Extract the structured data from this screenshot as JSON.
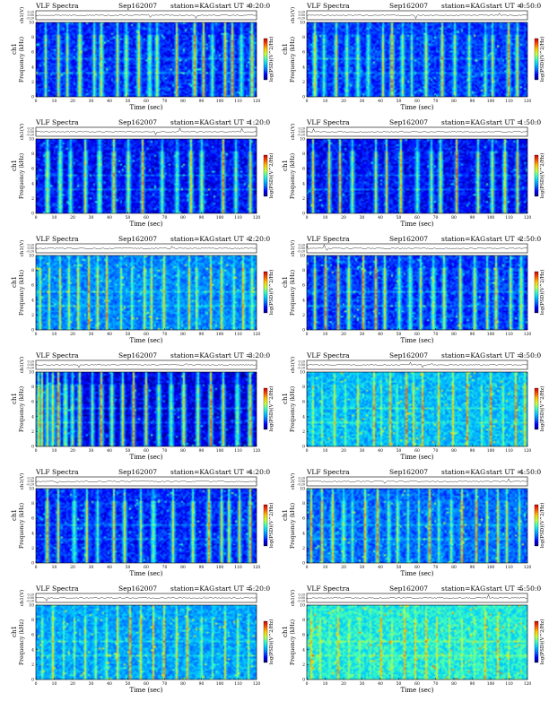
{
  "page": {
    "background": "#ffffff"
  },
  "common": {
    "title_left": "VLF Spectra",
    "date": "Sep162007",
    "station": "station=KAG",
    "start_prefix": "start UT =",
    "ch_label": "ch1(V)",
    "freq_label": "Frequency (kHz)",
    "ch_side": "ch1",
    "xlabel": "Time (sec)",
    "colorbar_label": "log(PSD)(V^2/Hz)",
    "wave_ticks": [
      "0.20",
      "0.00",
      "-0.20"
    ],
    "freq_ticks": [
      "0",
      "2",
      "4",
      "6",
      "8",
      "10"
    ],
    "time_ticks": [
      "0",
      "10",
      "20",
      "30",
      "40",
      "50",
      "60",
      "70",
      "80",
      "90",
      "100",
      "110",
      "120"
    ]
  },
  "colormap": [
    "#00007f",
    "#0000ff",
    "#0070ff",
    "#00c8ff",
    "#3cffc0",
    "#c8ff3c",
    "#ffc800",
    "#ff5000",
    "#c80000"
  ],
  "chart_data": [
    {
      "type": "heatmap",
      "start_ut": "0:20:0",
      "xlim": [
        0,
        120
      ],
      "ylim": [
        0,
        10
      ],
      "background_level": 0.16,
      "bursts_s": [
        5,
        12,
        17,
        24,
        31,
        35,
        44,
        49,
        56,
        62,
        66,
        77,
        87,
        91,
        96,
        103,
        107,
        112,
        118
      ]
    },
    {
      "type": "heatmap",
      "start_ut": "0:50:0",
      "xlim": [
        0,
        120
      ],
      "ylim": [
        0,
        10
      ],
      "background_level": 0.18,
      "bursts_s": [
        4,
        9,
        16,
        22,
        28,
        33,
        41,
        46,
        52,
        57,
        65,
        74,
        81,
        89,
        97,
        101,
        110,
        115
      ]
    },
    {
      "type": "heatmap",
      "start_ut": "1:20:0",
      "xlim": [
        0,
        120
      ],
      "ylim": [
        0,
        10
      ],
      "background_level": 0.13,
      "bursts_s": [
        6,
        13,
        19,
        27,
        34,
        42,
        50,
        58,
        69,
        77,
        85,
        90,
        102,
        109,
        117
      ]
    },
    {
      "type": "heatmap",
      "start_ut": "1:50:0",
      "xlim": [
        0,
        120
      ],
      "ylim": [
        0,
        10
      ],
      "background_level": 0.13,
      "bursts_s": [
        3,
        12,
        18,
        25,
        37,
        43,
        51,
        60,
        68,
        73,
        82,
        93,
        101,
        108,
        115
      ]
    },
    {
      "type": "heatmap",
      "start_ut": "2:20:0",
      "xlim": [
        0,
        120
      ],
      "ylim": [
        0,
        10
      ],
      "background_level": 0.28,
      "bursts_s": [
        2,
        7,
        13,
        18,
        23,
        29,
        33,
        38,
        46,
        52,
        59,
        63,
        70,
        78,
        84,
        88,
        95,
        101,
        108,
        113,
        118
      ]
    },
    {
      "type": "heatmap",
      "start_ut": "2:50:0",
      "xlim": [
        0,
        120
      ],
      "ylim": [
        0,
        10
      ],
      "background_level": 0.18,
      "bursts_s": [
        4,
        10,
        17,
        23,
        30,
        37,
        42,
        50,
        56,
        62,
        69,
        75,
        84,
        91,
        98,
        103,
        111,
        117
      ]
    },
    {
      "type": "heatmap",
      "start_ut": "3:20:0",
      "xlim": [
        0,
        120
      ],
      "ylim": [
        0,
        10
      ],
      "background_level": 0.1,
      "bursts_s": [
        1,
        3,
        6,
        9,
        12,
        16,
        20,
        24,
        30,
        35,
        41,
        47,
        53,
        60,
        67,
        74,
        81,
        89,
        95,
        102,
        110,
        117
      ]
    },
    {
      "type": "heatmap",
      "start_ut": "3:50:0",
      "xlim": [
        0,
        120
      ],
      "ylim": [
        0,
        10
      ],
      "background_level": 0.36,
      "bursts_s": [
        3,
        8,
        15,
        21,
        28,
        36,
        40,
        45,
        49,
        54,
        58,
        63,
        72,
        80,
        88,
        95,
        100,
        107,
        114,
        119
      ]
    },
    {
      "type": "heatmap",
      "start_ut": "4:20:0",
      "xlim": [
        0,
        120
      ],
      "ylim": [
        0,
        10
      ],
      "background_level": 0.16,
      "bursts_s": [
        6,
        12,
        21,
        28,
        33,
        42,
        48,
        57,
        64,
        75,
        86,
        94,
        101,
        105,
        111,
        117
      ]
    },
    {
      "type": "heatmap",
      "start_ut": "4:50:0",
      "xlim": [
        0,
        120
      ],
      "ylim": [
        0,
        10
      ],
      "background_level": 0.24,
      "bursts_s": [
        2,
        8,
        14,
        20,
        25,
        31,
        38,
        44,
        49,
        55,
        61,
        67,
        72,
        79,
        85,
        92,
        98,
        104,
        109,
        116
      ]
    },
    {
      "type": "heatmap",
      "start_ut": "5:20:0",
      "xlim": [
        0,
        120
      ],
      "ylim": [
        0,
        10
      ],
      "background_level": 0.32,
      "bursts_s": [
        3,
        9,
        15,
        21,
        27,
        32,
        38,
        44,
        51,
        57,
        64,
        70,
        77,
        83,
        90,
        96,
        103,
        110,
        116
      ]
    },
    {
      "type": "heatmap",
      "start_ut": "5:50:0",
      "xlim": [
        0,
        120
      ],
      "ylim": [
        0,
        10
      ],
      "background_level": 0.45,
      "bursts_s": [
        2,
        7,
        12,
        17,
        23,
        29,
        34,
        40,
        46,
        53,
        59,
        65,
        71,
        78,
        85,
        91,
        97,
        104,
        110,
        117
      ]
    }
  ]
}
